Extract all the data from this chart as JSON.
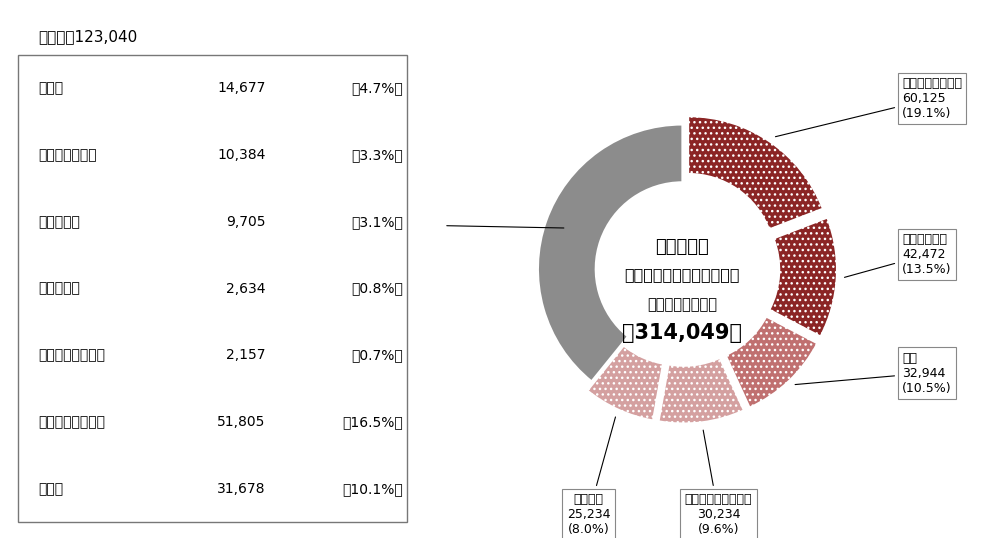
{
  "title_center_line1": "令和５年度",
  "title_center_line2": "民事上の個別労働関係紛争",
  "subtitle_center": "内訳延べ相談件数",
  "total_label": "計314,049件",
  "hoka_label": "ほか　計123,040",
  "table_items": [
    {
      "label": "雇止め",
      "value": "14,677",
      "pct": "（4.7%）"
    },
    {
      "label": "出向・配置転換",
      "value": "10,384",
      "pct": "（3.3%）"
    },
    {
      "label": "雇用管理等",
      "value": "9,705",
      "pct": "（3.1%）"
    },
    {
      "label": "募集・採用",
      "value": "2,634",
      "pct": "（0.8%）"
    },
    {
      "label": "採用内定取り消し",
      "value": "2,157",
      "pct": "（0.7%）"
    },
    {
      "label": "その他の労働条件",
      "value": "51,805",
      "pct": "（16.5%）"
    },
    {
      "label": "その他",
      "value": "31,678",
      "pct": "（10.1%）"
    }
  ],
  "pie_segments": [
    {
      "label_line1": "いじめ・嫌がらせ",
      "label_line2": "60,125",
      "label_line3": "(19.1%)",
      "value": 60125,
      "color": "#8B2525",
      "hatch": "...",
      "explode": 0.07
    },
    {
      "label_line1": "自己都合退職",
      "label_line2": "42,472",
      "label_line3": "(13.5%)",
      "value": 42472,
      "color": "#8B2525",
      "hatch": "...",
      "explode": 0.07
    },
    {
      "label_line1": "解雇",
      "label_line2": "32,944",
      "label_line3": "(10.5%)",
      "value": 32944,
      "color": "#C07070",
      "hatch": "...",
      "explode": 0.07
    },
    {
      "label_line1": "労働条件の引き下げ",
      "label_line2": "30,234",
      "label_line3": "(9.6%)",
      "value": 30234,
      "color": "#D4A0A0",
      "hatch": "...",
      "explode": 0.07
    },
    {
      "label_line1": "退職勧奪",
      "label_line2": "25,234",
      "label_line3": "(8.0%)",
      "value": 25234,
      "color": "#D4A0A0",
      "hatch": "...",
      "explode": 0.07
    },
    {
      "label_line1": "ほか",
      "label_line2": "",
      "label_line3": "",
      "value": 123040,
      "color": "#8C8C8C",
      "hatch": "",
      "explode": 0.0
    }
  ],
  "bg_color": "#ffffff",
  "text_color": "#000000",
  "box_edge_color": "#888888"
}
